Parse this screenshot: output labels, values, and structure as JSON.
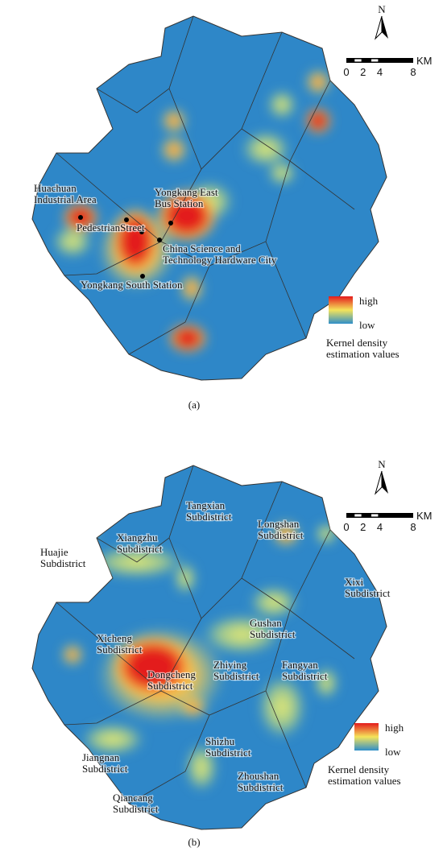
{
  "panels": [
    {
      "caption": "(a)",
      "north": "N",
      "scale": {
        "ticks": [
          0,
          2,
          4,
          8
        ],
        "unit": "KM"
      },
      "legend": {
        "high": "high",
        "low": "low",
        "title": [
          "Kernel density",
          "estimation values"
        ]
      },
      "labels": [
        [
          "Huachuan",
          "Industrial Area"
        ],
        [
          "Yongkang East",
          "Bus Station"
        ],
        [
          "PedestrianStreet"
        ],
        [
          "China Science and",
          "Technology Hardware City"
        ],
        [
          "Yongkang South Station"
        ]
      ]
    },
    {
      "caption": "(b)",
      "north": "N",
      "scale": {
        "ticks": [
          0,
          2,
          4,
          8
        ],
        "unit": "KM"
      },
      "legend": {
        "high": "high",
        "low": "low",
        "title": [
          "Kernel density",
          "estimation values"
        ]
      },
      "labels": [
        [
          "Tangxian",
          "Subdistrict"
        ],
        [
          "Longshan",
          "Subdistrict"
        ],
        [
          "Xiangzhu",
          "Subdistrict"
        ],
        [
          "Huajie",
          "Subdistrict"
        ],
        [
          "Xixi",
          "Subdistrict"
        ],
        [
          "Gushan",
          "Subdistrict"
        ],
        [
          "Xicheng",
          "Subdistrict"
        ],
        [
          "Zhiying",
          "Subdistrict"
        ],
        [
          "Fangyan",
          "Subdistrict"
        ],
        [
          "Dongcheng",
          "Subdistrict"
        ],
        [
          "Shizhu",
          "Subdistrict"
        ],
        [
          "Jiangnan",
          "Subdistrict"
        ],
        [
          "Zhoushan",
          "Subdistrict"
        ],
        [
          "Qiancang",
          "Subdistrict"
        ]
      ]
    }
  ]
}
